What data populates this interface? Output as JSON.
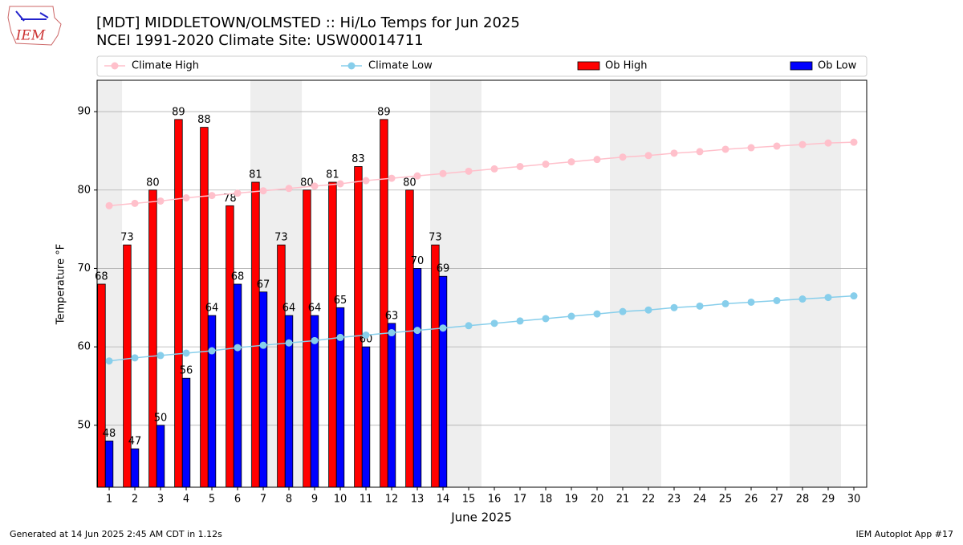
{
  "chart_data": {
    "type": "bar",
    "title": "[MDT] MIDDLETOWN/OLMSTED :: Hi/Lo Temps for Jun 2025",
    "subtitle": "NCEI 1991-2020 Climate Site: USW00014711",
    "logo_text": "IEM",
    "xlabel": "June 2025",
    "ylabel": "Temperature °F",
    "footer_left": "Generated at 14 Jun 2025 2:45 AM CDT in 1.12s",
    "footer_right": "IEM Autoplot App #17",
    "x": [
      1,
      2,
      3,
      4,
      5,
      6,
      7,
      8,
      9,
      10,
      11,
      12,
      13,
      14,
      15,
      16,
      17,
      18,
      19,
      20,
      21,
      22,
      23,
      24,
      25,
      26,
      27,
      28,
      29,
      30
    ],
    "xlim": [
      0.53,
      30.5
    ],
    "xticks": [
      1,
      2,
      3,
      4,
      5,
      6,
      7,
      8,
      9,
      10,
      11,
      12,
      13,
      14,
      15,
      16,
      17,
      18,
      19,
      20,
      21,
      22,
      23,
      24,
      25,
      26,
      27,
      28,
      29,
      30
    ],
    "ylim": [
      42.1,
      94.0
    ],
    "yticks": [
      50,
      60,
      70,
      80,
      90
    ],
    "grid": true,
    "legend": "top",
    "shaded_days": [
      1,
      7,
      8,
      14,
      15,
      21,
      22,
      28,
      29
    ],
    "shade_color": "#eeeeee",
    "series": [
      {
        "name": "Climate High",
        "type": "line",
        "color": "pink",
        "values": [
          78.0,
          78.3,
          78.6,
          79.0,
          79.3,
          79.6,
          79.9,
          80.2,
          80.5,
          80.8,
          81.2,
          81.5,
          81.8,
          82.1,
          82.4,
          82.7,
          83.0,
          83.3,
          83.6,
          83.9,
          84.2,
          84.4,
          84.7,
          84.9,
          85.2,
          85.4,
          85.6,
          85.8,
          86.0,
          86.1
        ]
      },
      {
        "name": "Climate Low",
        "type": "line",
        "color": "skyblue",
        "values": [
          58.2,
          58.6,
          58.9,
          59.2,
          59.5,
          59.9,
          60.2,
          60.5,
          60.8,
          61.2,
          61.5,
          61.8,
          62.1,
          62.4,
          62.7,
          63.0,
          63.3,
          63.6,
          63.9,
          64.2,
          64.5,
          64.7,
          65.0,
          65.2,
          65.5,
          65.7,
          65.9,
          66.1,
          66.3,
          66.5
        ]
      },
      {
        "name": "Ob High",
        "type": "bar",
        "color": "red",
        "values": [
          68,
          73,
          80,
          89,
          88,
          78,
          81,
          73,
          80,
          81,
          83,
          89,
          80,
          73,
          null,
          null,
          null,
          null,
          null,
          null,
          null,
          null,
          null,
          null,
          null,
          null,
          null,
          null,
          null,
          null
        ]
      },
      {
        "name": "Ob Low",
        "type": "bar",
        "color": "blue",
        "values": [
          48,
          47,
          50,
          56,
          64,
          68,
          67,
          64,
          64,
          65,
          60,
          63,
          70,
          69,
          null,
          null,
          null,
          null,
          null,
          null,
          null,
          null,
          null,
          null,
          null,
          null,
          null,
          null,
          null,
          null
        ]
      }
    ]
  }
}
